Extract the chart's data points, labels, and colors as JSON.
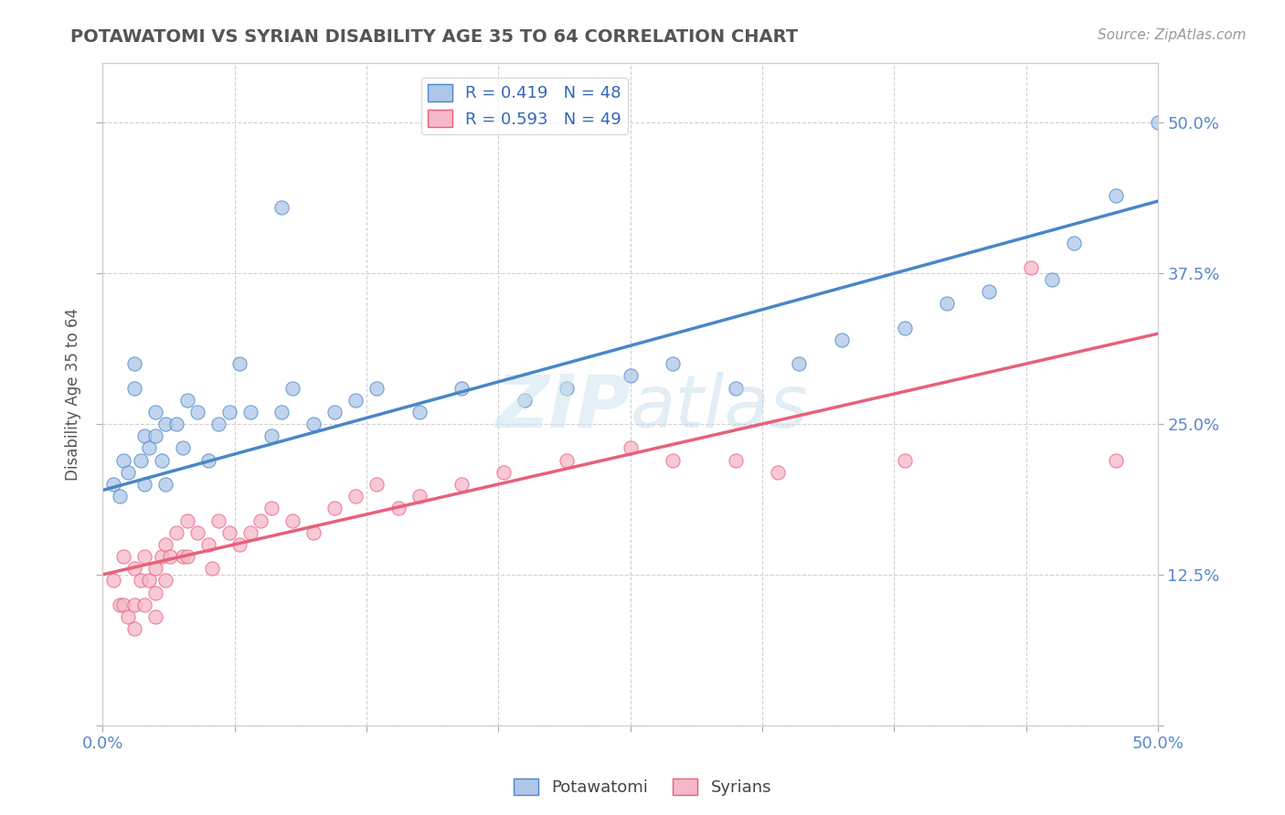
{
  "title": "POTAWATOMI VS SYRIAN DISABILITY AGE 35 TO 64 CORRELATION CHART",
  "source": "Source: ZipAtlas.com",
  "ylabel": "Disability Age 35 to 64",
  "xlim": [
    0.0,
    0.5
  ],
  "ylim": [
    0.0,
    0.55
  ],
  "R_potawatomi": 0.419,
  "N_potawatomi": 48,
  "R_syrians": 0.593,
  "N_syrians": 49,
  "dot_color_potawatomi": "#aec6e8",
  "dot_color_syrians": "#f5b8c8",
  "line_color_potawatomi": "#4a86c8",
  "line_color_syrians": "#e8607a",
  "legend_label_potawatomi": "Potawatomi",
  "legend_label_syrians": "Syrians",
  "watermark": "ZIPatlas",
  "background_color": "#ffffff",
  "grid_color": "#cccccc",
  "blue_line_x0": 0.0,
  "blue_line_y0": 0.195,
  "blue_line_x1": 0.5,
  "blue_line_y1": 0.435,
  "pink_line_x0": 0.0,
  "pink_line_y0": 0.125,
  "pink_line_x1": 0.5,
  "pink_line_y1": 0.325,
  "potawatomi_x": [
    0.005,
    0.008,
    0.01,
    0.012,
    0.015,
    0.015,
    0.018,
    0.02,
    0.02,
    0.022,
    0.025,
    0.025,
    0.028,
    0.03,
    0.03,
    0.035,
    0.038,
    0.04,
    0.045,
    0.05,
    0.055,
    0.06,
    0.065,
    0.07,
    0.08,
    0.085,
    0.09,
    0.1,
    0.11,
    0.12,
    0.13,
    0.15,
    0.17,
    0.2,
    0.22,
    0.25,
    0.27,
    0.3,
    0.33,
    0.35,
    0.38,
    0.4,
    0.42,
    0.45,
    0.46,
    0.48,
    0.5,
    0.085
  ],
  "potawatomi_y": [
    0.2,
    0.19,
    0.22,
    0.21,
    0.3,
    0.28,
    0.22,
    0.24,
    0.2,
    0.23,
    0.26,
    0.24,
    0.22,
    0.25,
    0.2,
    0.25,
    0.23,
    0.27,
    0.26,
    0.22,
    0.25,
    0.26,
    0.3,
    0.26,
    0.24,
    0.26,
    0.28,
    0.25,
    0.26,
    0.27,
    0.28,
    0.26,
    0.28,
    0.27,
    0.28,
    0.29,
    0.3,
    0.28,
    0.3,
    0.32,
    0.33,
    0.35,
    0.36,
    0.37,
    0.4,
    0.44,
    0.5,
    0.43
  ],
  "syrians_x": [
    0.005,
    0.008,
    0.01,
    0.01,
    0.012,
    0.015,
    0.015,
    0.015,
    0.018,
    0.02,
    0.02,
    0.022,
    0.025,
    0.025,
    0.025,
    0.028,
    0.03,
    0.03,
    0.032,
    0.035,
    0.038,
    0.04,
    0.04,
    0.045,
    0.05,
    0.052,
    0.055,
    0.06,
    0.065,
    0.07,
    0.075,
    0.08,
    0.09,
    0.1,
    0.11,
    0.12,
    0.13,
    0.14,
    0.15,
    0.17,
    0.19,
    0.22,
    0.25,
    0.27,
    0.3,
    0.32,
    0.38,
    0.44,
    0.48
  ],
  "syrians_y": [
    0.12,
    0.1,
    0.14,
    0.1,
    0.09,
    0.13,
    0.1,
    0.08,
    0.12,
    0.14,
    0.1,
    0.12,
    0.13,
    0.11,
    0.09,
    0.14,
    0.15,
    0.12,
    0.14,
    0.16,
    0.14,
    0.17,
    0.14,
    0.16,
    0.15,
    0.13,
    0.17,
    0.16,
    0.15,
    0.16,
    0.17,
    0.18,
    0.17,
    0.16,
    0.18,
    0.19,
    0.2,
    0.18,
    0.19,
    0.2,
    0.21,
    0.22,
    0.23,
    0.22,
    0.22,
    0.21,
    0.22,
    0.38,
    0.22
  ]
}
